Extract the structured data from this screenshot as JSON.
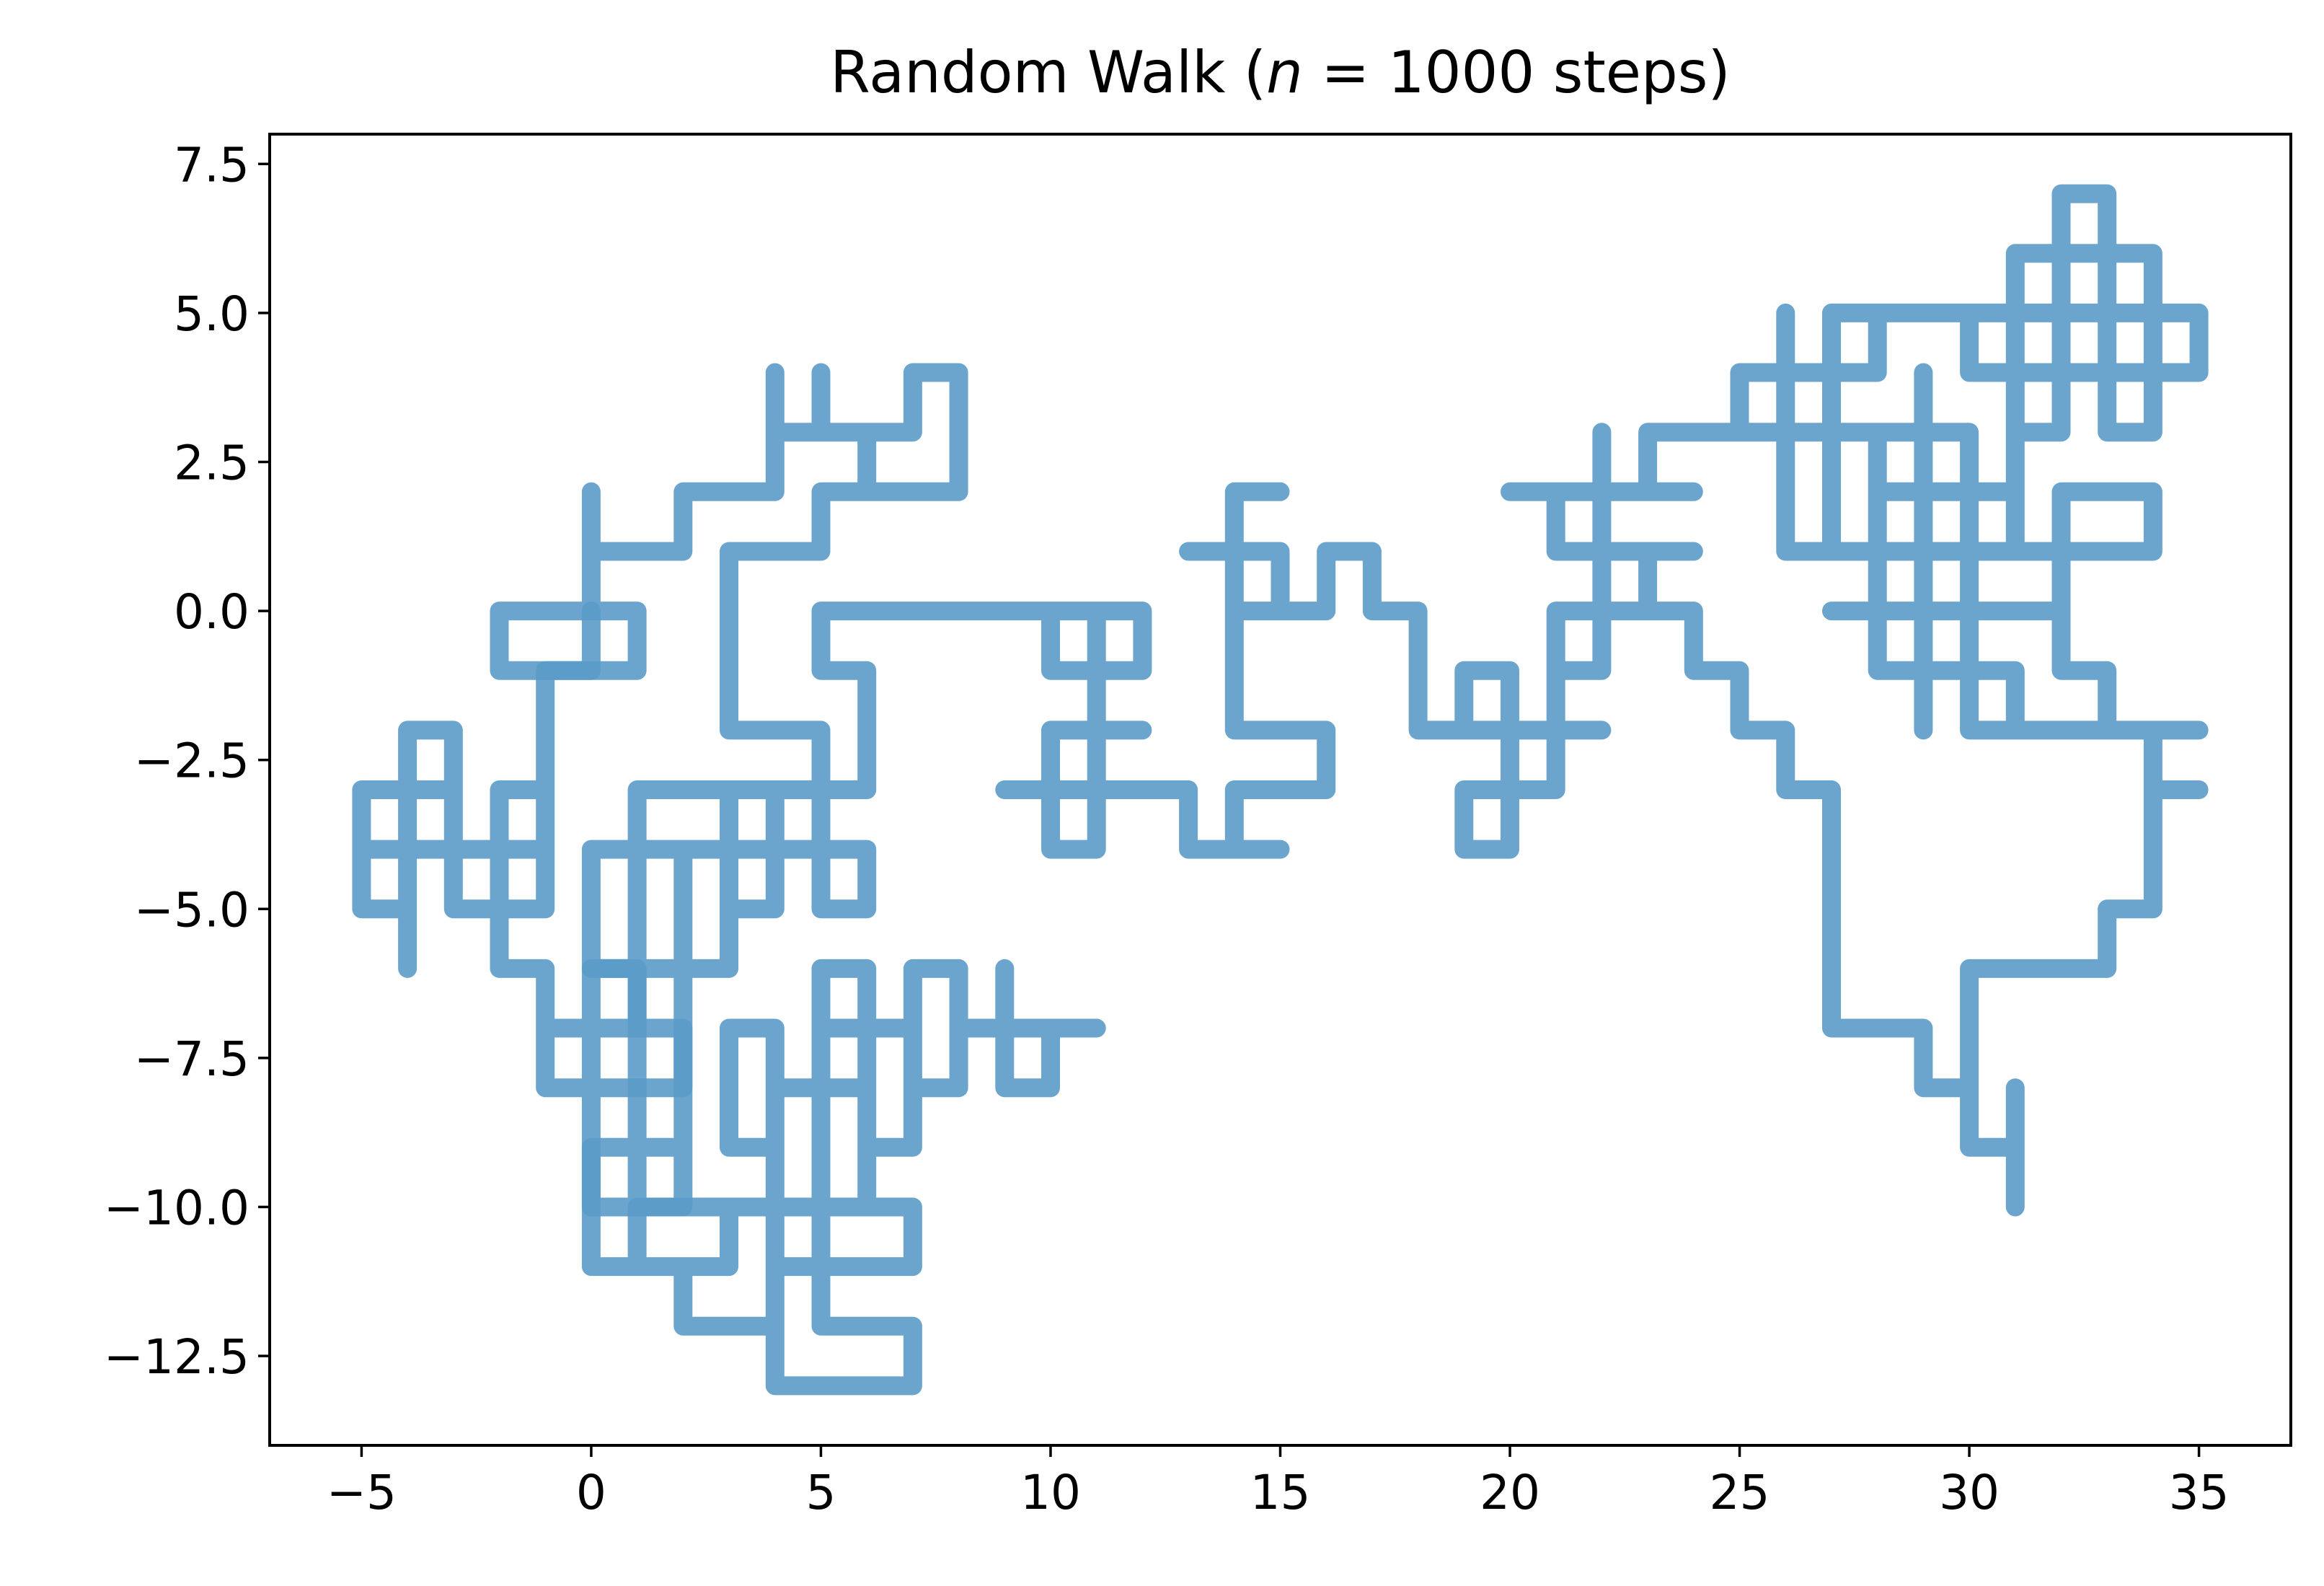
{
  "chart_data": {
    "type": "line",
    "title": "Random Walk ($n = 1000$ steps)",
    "title_parts": {
      "prefix": "Random Walk (",
      "var": "n",
      "rest": " = 1000 steps)"
    },
    "xlabel": "",
    "ylabel": "",
    "xlim": [
      -7,
      37
    ],
    "ylim": [
      -14,
      8
    ],
    "x_ticks": [
      -5,
      0,
      5,
      10,
      15,
      20,
      25,
      30,
      35
    ],
    "x_tick_labels": [
      "−5",
      "0",
      "5",
      "10",
      "15",
      "20",
      "25",
      "30",
      "35"
    ],
    "y_ticks": [
      7.5,
      5.0,
      2.5,
      0.0,
      -2.5,
      -5.0,
      -7.5,
      -10.0,
      -12.5
    ],
    "y_tick_labels": [
      "7.5",
      "5.0",
      "2.5",
      "0.0",
      "−2.5",
      "−5.0",
      "−7.5",
      "−10.0",
      "−12.5"
    ],
    "grid": false,
    "series": [
      {
        "color": "#5b9bc9",
        "alpha": 0.9,
        "points": [
          [
            0,
            0
          ],
          [
            -2,
            0
          ],
          [
            -2,
            -1
          ],
          [
            1,
            -1
          ],
          [
            1,
            0
          ],
          [
            0,
            0
          ],
          [
            0,
            2
          ],
          [
            0,
            1
          ],
          [
            2,
            1
          ],
          [
            2,
            2
          ],
          [
            4,
            2
          ],
          [
            4,
            4
          ],
          [
            4,
            3
          ],
          [
            5,
            3
          ],
          [
            5,
            4
          ],
          [
            5,
            3
          ],
          [
            7,
            3
          ],
          [
            7,
            4
          ],
          [
            8,
            4
          ],
          [
            8,
            2
          ],
          [
            6,
            2
          ],
          [
            6,
            3
          ],
          [
            6,
            2
          ],
          [
            5,
            2
          ],
          [
            5,
            1
          ],
          [
            3,
            1
          ],
          [
            3,
            -2
          ],
          [
            5,
            -2
          ],
          [
            5,
            -3
          ],
          [
            1,
            -3
          ],
          [
            1,
            -10
          ],
          [
            2,
            -10
          ],
          [
            2,
            -9
          ],
          [
            0,
            -9
          ],
          [
            0,
            -10
          ],
          [
            2,
            -10
          ],
          [
            2,
            -4
          ],
          [
            3,
            -4
          ],
          [
            3,
            -6
          ],
          [
            0,
            -6
          ],
          [
            0,
            -4
          ],
          [
            6,
            -4
          ],
          [
            6,
            -5
          ],
          [
            5,
            -5
          ],
          [
            5,
            -3
          ],
          [
            4,
            -3
          ],
          [
            4,
            -5
          ],
          [
            3,
            -5
          ],
          [
            3,
            -3
          ],
          [
            6,
            -3
          ],
          [
            6,
            -1
          ],
          [
            5,
            -1
          ],
          [
            5,
            0
          ],
          [
            12,
            0
          ],
          [
            12,
            -1
          ],
          [
            10,
            -1
          ],
          [
            10,
            0
          ],
          [
            11,
            0
          ],
          [
            11,
            -4
          ],
          [
            10,
            -4
          ],
          [
            10,
            -2
          ],
          [
            12,
            -2
          ],
          [
            11,
            -2
          ],
          [
            11,
            -3
          ],
          [
            9,
            -3
          ],
          [
            13,
            -3
          ],
          [
            13,
            -4
          ],
          [
            15,
            -4
          ],
          [
            14,
            -4
          ],
          [
            14,
            -3
          ],
          [
            16,
            -3
          ],
          [
            16,
            -2
          ],
          [
            14,
            -2
          ],
          [
            14,
            2
          ],
          [
            15,
            2
          ],
          [
            14,
            2
          ],
          [
            14,
            1
          ],
          [
            13,
            1
          ],
          [
            15,
            1
          ],
          [
            15,
            0
          ],
          [
            14,
            0
          ],
          [
            16,
            0
          ],
          [
            16,
            1
          ],
          [
            17,
            1
          ],
          [
            17,
            0
          ],
          [
            18,
            0
          ],
          [
            18,
            -2
          ],
          [
            22,
            -2
          ],
          [
            21,
            -2
          ],
          [
            21,
            -1
          ],
          [
            22,
            -1
          ],
          [
            22,
            3
          ],
          [
            22,
            2
          ],
          [
            24,
            2
          ],
          [
            21,
            2
          ],
          [
            21,
            1
          ],
          [
            24,
            1
          ],
          [
            23,
            1
          ],
          [
            23,
            0
          ],
          [
            21,
            0
          ],
          [
            21,
            -3
          ],
          [
            19,
            -3
          ],
          [
            19,
            -4
          ],
          [
            20,
            -4
          ],
          [
            20,
            -1
          ],
          [
            19,
            -1
          ],
          [
            19,
            -2
          ],
          [
            21,
            -2
          ],
          [
            21,
            0
          ],
          [
            24,
            0
          ],
          [
            24,
            -1
          ],
          [
            25,
            -1
          ],
          [
            25,
            -2
          ],
          [
            26,
            -2
          ],
          [
            26,
            -3
          ],
          [
            27,
            -3
          ],
          [
            27,
            -7
          ],
          [
            29,
            -7
          ],
          [
            29,
            -8
          ],
          [
            30,
            -8
          ],
          [
            30,
            -9
          ],
          [
            31,
            -9
          ],
          [
            31,
            -8
          ],
          [
            31,
            -10
          ],
          [
            31,
            -9
          ],
          [
            30,
            -9
          ],
          [
            30,
            -6
          ],
          [
            33,
            -6
          ],
          [
            33,
            -5
          ],
          [
            34,
            -5
          ],
          [
            34,
            -2
          ],
          [
            35,
            -2
          ],
          [
            34,
            -2
          ],
          [
            34,
            -3
          ],
          [
            35,
            -3
          ],
          [
            34,
            -3
          ],
          [
            34,
            -2
          ],
          [
            30,
            -2
          ],
          [
            30,
            0
          ],
          [
            29,
            0
          ],
          [
            29,
            -2
          ],
          [
            29,
            -1
          ],
          [
            28,
            -1
          ],
          [
            28,
            0
          ],
          [
            27,
            0
          ],
          [
            32,
            0
          ],
          [
            32,
            1
          ],
          [
            30,
            1
          ],
          [
            30,
            3
          ],
          [
            26,
            3
          ],
          [
            26,
            4
          ],
          [
            25,
            4
          ],
          [
            25,
            3
          ],
          [
            23,
            3
          ],
          [
            23,
            2
          ],
          [
            22,
            2
          ],
          [
            20,
            2
          ],
          [
            24,
            2
          ],
          [
            23,
            2
          ],
          [
            23,
            3
          ],
          [
            26,
            3
          ],
          [
            26,
            1
          ],
          [
            28,
            1
          ],
          [
            28,
            0
          ],
          [
            28,
            3
          ],
          [
            27,
            3
          ],
          [
            27,
            4
          ],
          [
            28,
            4
          ],
          [
            28,
            5
          ],
          [
            32,
            5
          ],
          [
            32,
            6
          ],
          [
            34,
            6
          ],
          [
            34,
            3
          ],
          [
            33,
            3
          ],
          [
            33,
            7
          ],
          [
            32,
            7
          ],
          [
            32,
            3
          ],
          [
            31,
            3
          ],
          [
            31,
            2
          ],
          [
            29,
            2
          ],
          [
            29,
            -1
          ],
          [
            31,
            -1
          ],
          [
            31,
            -2
          ],
          [
            33,
            -2
          ],
          [
            33,
            -1
          ],
          [
            32,
            -1
          ],
          [
            32,
            2
          ],
          [
            34,
            2
          ],
          [
            34,
            1
          ],
          [
            31,
            1
          ],
          [
            31,
            4
          ],
          [
            35,
            4
          ],
          [
            35,
            5
          ],
          [
            32,
            5
          ],
          [
            32,
            6
          ],
          [
            31,
            6
          ],
          [
            31,
            4
          ],
          [
            30,
            4
          ],
          [
            30,
            5
          ],
          [
            27,
            5
          ],
          [
            27,
            4
          ],
          [
            26,
            4
          ],
          [
            26,
            5
          ],
          [
            26,
            3
          ],
          [
            27,
            3
          ],
          [
            27,
            1
          ],
          [
            28,
            1
          ],
          [
            28,
            2
          ],
          [
            29,
            2
          ],
          [
            29,
            4
          ],
          [
            29,
            0
          ],
          [
            30,
            0
          ],
          [
            30,
            -1
          ],
          [
            30,
            1
          ],
          [
            27,
            1
          ]
        ]
      },
      {
        "color": "#5b9bc9",
        "alpha": 0.9,
        "points": [
          [
            0,
            0
          ],
          [
            0,
            -1
          ],
          [
            -1,
            -1
          ],
          [
            -1,
            -5
          ],
          [
            -3,
            -5
          ],
          [
            -3,
            -3
          ],
          [
            -5,
            -3
          ],
          [
            -5,
            -5
          ],
          [
            -4,
            -5
          ],
          [
            -4,
            -6
          ],
          [
            -4,
            -2
          ],
          [
            -3,
            -2
          ],
          [
            -3,
            -4
          ],
          [
            -5,
            -4
          ],
          [
            -1,
            -4
          ],
          [
            -1,
            -3
          ],
          [
            -2,
            -3
          ],
          [
            -2,
            -6
          ],
          [
            -1,
            -6
          ],
          [
            -1,
            -8
          ],
          [
            2,
            -8
          ],
          [
            2,
            -7
          ],
          [
            -1,
            -7
          ],
          [
            1,
            -7
          ],
          [
            1,
            -6
          ],
          [
            0,
            -6
          ],
          [
            0,
            -11
          ],
          [
            2,
            -11
          ],
          [
            2,
            -12
          ],
          [
            4,
            -12
          ],
          [
            4,
            -10
          ],
          [
            3,
            -10
          ],
          [
            3,
            -11
          ],
          [
            1,
            -11
          ],
          [
            1,
            -10
          ],
          [
            4,
            -10
          ],
          [
            4,
            -9
          ],
          [
            3,
            -9
          ],
          [
            3,
            -7
          ],
          [
            4,
            -7
          ],
          [
            4,
            -8
          ],
          [
            5,
            -8
          ],
          [
            5,
            -6
          ],
          [
            6,
            -6
          ],
          [
            6,
            -7
          ],
          [
            7,
            -7
          ],
          [
            7,
            -8
          ],
          [
            8,
            -8
          ],
          [
            8,
            -7
          ],
          [
            11,
            -7
          ],
          [
            10,
            -7
          ],
          [
            10,
            -8
          ],
          [
            9,
            -8
          ],
          [
            9,
            -6
          ],
          [
            9,
            -7
          ],
          [
            8,
            -7
          ],
          [
            8,
            -6
          ],
          [
            7,
            -6
          ],
          [
            7,
            -9
          ],
          [
            6,
            -9
          ],
          [
            6,
            -7
          ],
          [
            5,
            -7
          ],
          [
            5,
            -8
          ],
          [
            4,
            -8
          ],
          [
            4,
            -13
          ],
          [
            7,
            -13
          ],
          [
            7,
            -12
          ],
          [
            5,
            -12
          ],
          [
            5,
            -10
          ],
          [
            7,
            -10
          ],
          [
            7,
            -11
          ],
          [
            4,
            -11
          ],
          [
            4,
            -10
          ],
          [
            6,
            -10
          ],
          [
            6,
            -8
          ],
          [
            5,
            -8
          ],
          [
            5,
            -11
          ],
          [
            4,
            -11
          ]
        ]
      }
    ]
  }
}
